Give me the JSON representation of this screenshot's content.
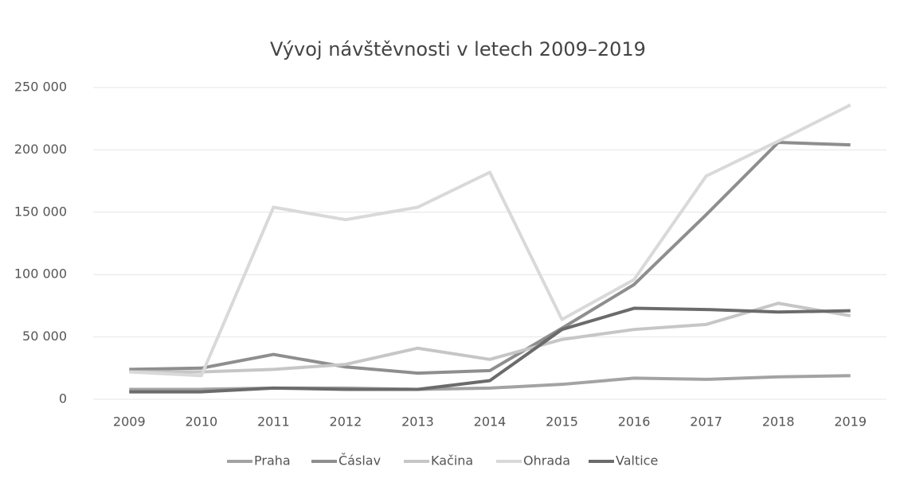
{
  "chart_data": {
    "type": "line",
    "title": "Vývoj návštěvnosti v letech 2009–2019",
    "categories": [
      "2009",
      "2010",
      "2011",
      "2012",
      "2013",
      "2014",
      "2015",
      "2016",
      "2017",
      "2018",
      "2019"
    ],
    "series": [
      {
        "name": "Praha",
        "color": "#a3a3a3",
        "values": [
          8000,
          8000,
          9000,
          9000,
          8000,
          9000,
          12000,
          17000,
          16000,
          18000,
          19000
        ]
      },
      {
        "name": "Čáslav",
        "color": "#8e8e8e",
        "values": [
          24000,
          25000,
          36000,
          26000,
          21000,
          23000,
          57000,
          92000,
          148000,
          206000,
          204000
        ]
      },
      {
        "name": "Kačina",
        "color": "#c6c6c6",
        "values": [
          22000,
          22000,
          24000,
          28000,
          41000,
          32000,
          48000,
          56000,
          60000,
          77000,
          67000
        ]
      },
      {
        "name": "Ohrada",
        "color": "#d9d9d9",
        "values": [
          22000,
          19000,
          154000,
          144000,
          154000,
          182000,
          64000,
          96000,
          179000,
          207000,
          236000
        ]
      },
      {
        "name": "Valtice",
        "color": "#6b6b6b",
        "values": [
          6000,
          6000,
          9000,
          8000,
          8000,
          15000,
          56000,
          73000,
          72000,
          70000,
          71000
        ]
      }
    ],
    "ylim": [
      0,
      250000
    ],
    "yticks": [
      0,
      {
        "value": 50000,
        "label": "50 000"
      },
      {
        "value": 100000,
        "label": "100 000"
      },
      {
        "value": 150000,
        "label": "150 000"
      },
      {
        "value": 200000,
        "label": "200 000"
      },
      {
        "value": 250000,
        "label": "250 000"
      }
    ],
    "grid": true,
    "legend": "bottom"
  }
}
